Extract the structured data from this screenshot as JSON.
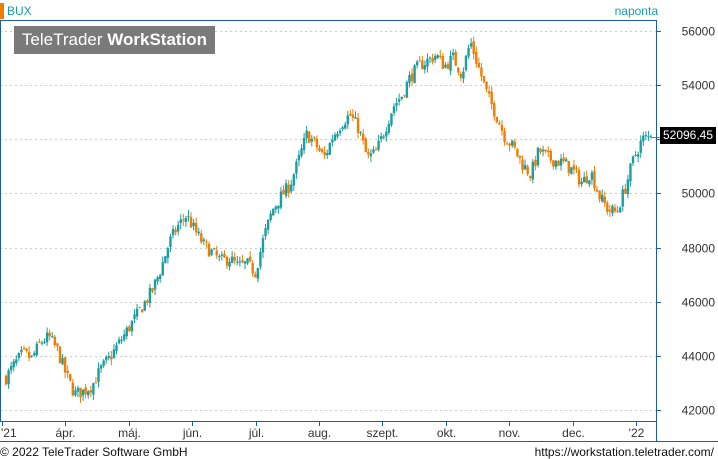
{
  "header": {
    "symbol": "BUX",
    "interval": "naponta"
  },
  "logo": {
    "part1": "TeleTrader ",
    "part2": "WorkStation"
  },
  "footer": {
    "copyright": "© 2022 TeleTrader Software GmbH",
    "url": "https://workstation.teletrader.com/"
  },
  "last_value_label": "52096,45",
  "colors": {
    "up": "#1a9ea0",
    "down": "#f07d00",
    "axis": "#1a5ea8",
    "grid": "#cccccc",
    "marker": "#f07d00"
  },
  "chart_data": {
    "type": "candlestick",
    "title": "",
    "series_name": "BUX",
    "frequency": "naponta",
    "x_tick_labels": [
      "'21",
      "ápr.",
      "máj.",
      "jún.",
      "júl.",
      "aug.",
      "szept.",
      "okt.",
      "nov.",
      "dec.",
      "'22"
    ],
    "y_tick_labels": [
      "42000",
      "44000",
      "46000",
      "48000",
      "50000",
      "52000",
      "54000",
      "56000"
    ],
    "y_ticks": [
      42000,
      44000,
      46000,
      48000,
      50000,
      52000,
      54000,
      56000
    ],
    "ylim": [
      41600,
      56400
    ],
    "last_value": 52096.45,
    "grid": true,
    "y_axis_side": "right",
    "close_path_weekly": [
      {
        "t": 0,
        "v": 43200
      },
      {
        "t": 1,
        "v": 43700
      },
      {
        "t": 2,
        "v": 44100
      },
      {
        "t": 3,
        "v": 43900
      },
      {
        "t": 4,
        "v": 44500
      },
      {
        "t": 5,
        "v": 44700
      },
      {
        "t": 6,
        "v": 44200
      },
      {
        "t": 7,
        "v": 43300
      },
      {
        "t": 8,
        "v": 42600
      },
      {
        "t": 9,
        "v": 42700
      },
      {
        "t": 10,
        "v": 42900
      },
      {
        "t": 11,
        "v": 43500
      },
      {
        "t": 12,
        "v": 43900
      },
      {
        "t": 13,
        "v": 44400
      },
      {
        "t": 14,
        "v": 44900
      },
      {
        "t": 15,
        "v": 45400
      },
      {
        "t": 16,
        "v": 45900
      },
      {
        "t": 17,
        "v": 46400
      },
      {
        "t": 18,
        "v": 47200
      },
      {
        "t": 19,
        "v": 48200
      },
      {
        "t": 20,
        "v": 48800
      },
      {
        "t": 21,
        "v": 49200
      },
      {
        "t": 22,
        "v": 48600
      },
      {
        "t": 23,
        "v": 48100
      },
      {
        "t": 24,
        "v": 47800
      },
      {
        "t": 25,
        "v": 47500
      },
      {
        "t": 26,
        "v": 47600
      },
      {
        "t": 27,
        "v": 47300
      },
      {
        "t": 28,
        "v": 47400
      },
      {
        "t": 29,
        "v": 47100
      },
      {
        "t": 30,
        "v": 48400
      },
      {
        "t": 31,
        "v": 49400
      },
      {
        "t": 32,
        "v": 49900
      },
      {
        "t": 33,
        "v": 50300
      },
      {
        "t": 34,
        "v": 51200
      },
      {
        "t": 35,
        "v": 52200
      },
      {
        "t": 36,
        "v": 51800
      },
      {
        "t": 37,
        "v": 51300
      },
      {
        "t": 38,
        "v": 52100
      },
      {
        "t": 39,
        "v": 52600
      },
      {
        "t": 40,
        "v": 52900
      },
      {
        "t": 41,
        "v": 52400
      },
      {
        "t": 42,
        "v": 51300
      },
      {
        "t": 43,
        "v": 51500
      },
      {
        "t": 44,
        "v": 52300
      },
      {
        "t": 45,
        "v": 53200
      },
      {
        "t": 46,
        "v": 53600
      },
      {
        "t": 47,
        "v": 54300
      },
      {
        "t": 48,
        "v": 54700
      },
      {
        "t": 49,
        "v": 54900
      },
      {
        "t": 50,
        "v": 55100
      },
      {
        "t": 51,
        "v": 54700
      },
      {
        "t": 52,
        "v": 55000
      },
      {
        "t": 53,
        "v": 54400
      },
      {
        "t": 54,
        "v": 55600
      },
      {
        "t": 55,
        "v": 54600
      },
      {
        "t": 56,
        "v": 53600
      },
      {
        "t": 57,
        "v": 52900
      },
      {
        "t": 58,
        "v": 52100
      },
      {
        "t": 59,
        "v": 51700
      },
      {
        "t": 60,
        "v": 51100
      },
      {
        "t": 61,
        "v": 50700
      },
      {
        "t": 62,
        "v": 51600
      },
      {
        "t": 63,
        "v": 51300
      },
      {
        "t": 64,
        "v": 51200
      },
      {
        "t": 65,
        "v": 51100
      },
      {
        "t": 66,
        "v": 50800
      },
      {
        "t": 67,
        "v": 50400
      },
      {
        "t": 68,
        "v": 50800
      },
      {
        "t": 69,
        "v": 49900
      },
      {
        "t": 70,
        "v": 49400
      },
      {
        "t": 71,
        "v": 49300
      },
      {
        "t": 72,
        "v": 50200
      },
      {
        "t": 73,
        "v": 51300
      },
      {
        "t": 74,
        "v": 52000
      },
      {
        "t": 75,
        "v": 52096.45
      }
    ]
  }
}
